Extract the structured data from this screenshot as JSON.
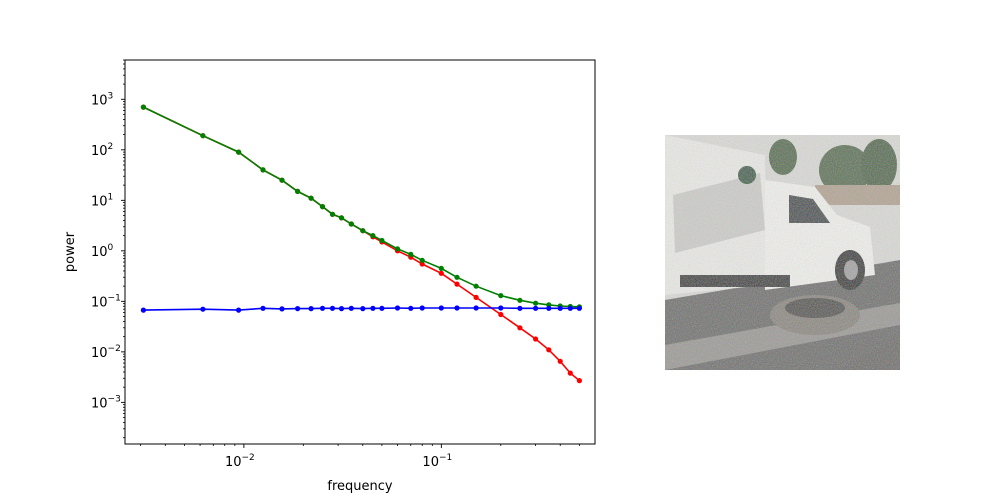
{
  "chart_data": {
    "type": "line",
    "title": "",
    "xlabel": "frequency",
    "ylabel": "power",
    "x_scale": "log",
    "y_scale": "log",
    "xlim": [
      0.0025,
      0.6
    ],
    "ylim": [
      0.00015,
      6000
    ],
    "grid": false,
    "legend": "none",
    "x_ticks": [
      {
        "value": 0.01,
        "base": "10",
        "exp": "−2"
      },
      {
        "value": 0.1,
        "base": "10",
        "exp": "−1"
      }
    ],
    "y_ticks": [
      {
        "value": 0.001,
        "base": "10",
        "exp": "−3"
      },
      {
        "value": 0.01,
        "base": "10",
        "exp": "−2"
      },
      {
        "value": 0.1,
        "base": "10",
        "exp": "−1"
      },
      {
        "value": 1,
        "base": "10",
        "exp": "0"
      },
      {
        "value": 10,
        "base": "10",
        "exp": "1"
      },
      {
        "value": 100,
        "base": "10",
        "exp": "2"
      },
      {
        "value": 1000,
        "base": "10",
        "exp": "3"
      }
    ],
    "series": [
      {
        "color": "#ff0000",
        "x": [
          0.0031,
          0.0062,
          0.0094,
          0.0125,
          0.0156,
          0.0187,
          0.0219,
          0.025,
          0.0281,
          0.0312,
          0.035,
          0.04,
          0.045,
          0.05,
          0.06,
          0.07,
          0.08,
          0.1,
          0.12,
          0.15,
          0.2,
          0.25,
          0.3,
          0.35,
          0.4,
          0.45,
          0.5
        ],
        "y": [
          700,
          190,
          90,
          40,
          25,
          15,
          11,
          7.5,
          5.3,
          4.5,
          3.4,
          2.5,
          1.9,
          1.5,
          1.0,
          0.75,
          0.55,
          0.36,
          0.22,
          0.12,
          0.055,
          0.03,
          0.018,
          0.011,
          0.0065,
          0.0038,
          0.0027
        ]
      },
      {
        "color": "#008000",
        "x": [
          0.0031,
          0.0062,
          0.0094,
          0.0125,
          0.0156,
          0.0187,
          0.0219,
          0.025,
          0.0281,
          0.0312,
          0.035,
          0.04,
          0.045,
          0.05,
          0.06,
          0.07,
          0.08,
          0.1,
          0.12,
          0.15,
          0.2,
          0.25,
          0.3,
          0.35,
          0.4,
          0.45,
          0.5
        ],
        "y": [
          700,
          190,
          90,
          40,
          25,
          15,
          11,
          7.5,
          5.3,
          4.5,
          3.4,
          2.5,
          2.0,
          1.6,
          1.1,
          0.85,
          0.65,
          0.45,
          0.3,
          0.2,
          0.13,
          0.105,
          0.092,
          0.085,
          0.081,
          0.079,
          0.078
        ]
      },
      {
        "color": "#0000ff",
        "x": [
          0.0031,
          0.0062,
          0.0094,
          0.0125,
          0.0156,
          0.0187,
          0.0219,
          0.025,
          0.0281,
          0.0312,
          0.035,
          0.04,
          0.045,
          0.05,
          0.06,
          0.07,
          0.08,
          0.1,
          0.12,
          0.15,
          0.2,
          0.25,
          0.3,
          0.35,
          0.4,
          0.45,
          0.5
        ],
        "y": [
          0.067,
          0.07,
          0.067,
          0.073,
          0.071,
          0.072,
          0.072,
          0.073,
          0.073,
          0.072,
          0.073,
          0.072,
          0.073,
          0.073,
          0.074,
          0.073,
          0.074,
          0.074,
          0.074,
          0.074,
          0.074,
          0.073,
          0.073,
          0.073,
          0.073,
          0.073,
          0.073
        ]
      }
    ]
  },
  "image_panel": {
    "subject": "noisy photo of a white utility pickup truck parked beside a concrete planter"
  }
}
